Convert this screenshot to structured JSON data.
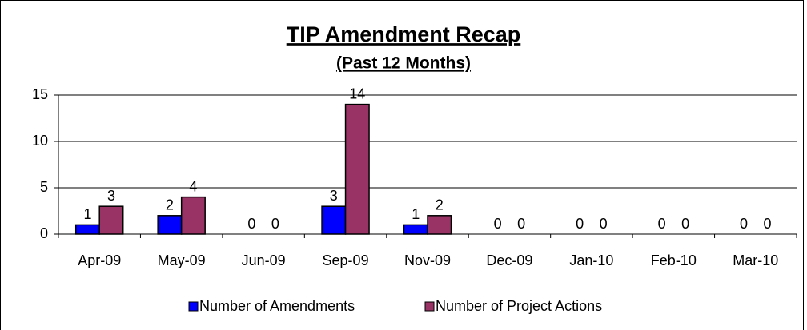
{
  "chart_data": {
    "type": "bar",
    "title": "TIP Amendment Recap",
    "subtitle": "(Past 12 Months)",
    "categories": [
      "Apr-09",
      "May-09",
      "Jun-09",
      "Sep-09",
      "Nov-09",
      "Dec-09",
      "Jan-10",
      "Feb-10",
      "Mar-10"
    ],
    "series": [
      {
        "name": "Number of Amendments",
        "color": "#0000ff",
        "values": [
          1,
          2,
          0,
          3,
          1,
          0,
          0,
          0,
          0
        ]
      },
      {
        "name": "Number of Project Actions",
        "color": "#993366",
        "values": [
          3,
          4,
          0,
          14,
          2,
          0,
          0,
          0,
          0
        ]
      }
    ],
    "ylim": [
      0,
      15
    ],
    "yticks": [
      0,
      5,
      10,
      15
    ],
    "grid": true,
    "legend": "bottom"
  }
}
